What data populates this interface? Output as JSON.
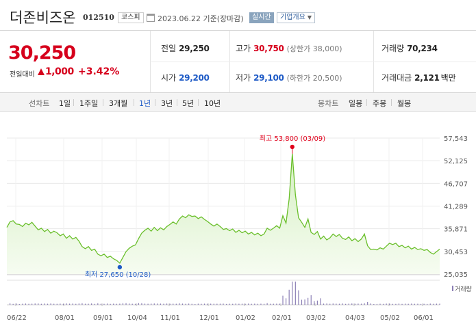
{
  "header": {
    "name": "더존비즈온",
    "code": "012510",
    "market": "코스피",
    "as_of": "2023.06.22 기준(장마감)",
    "realtime_label": "실시간",
    "overview_label": "기업개요",
    "overview_caret": "▼"
  },
  "price": {
    "current": "30,250",
    "diff_label": "전일대비",
    "diff": "1,000",
    "rate": "+3.42%"
  },
  "stats": {
    "prev_label": "전일",
    "prev": "29,250",
    "high_label": "고가",
    "high": "30,750",
    "upper_limit": "(상한가 38,000)",
    "volume_label": "거래량",
    "volume": "70,234",
    "open_label": "시가",
    "open": "29,200",
    "low_label": "저가",
    "low": "29,100",
    "lower_limit": "(하한가 20,500)",
    "amount_label": "거래대금",
    "amount": "2,121",
    "amount_unit": "백만"
  },
  "tabs": {
    "line_label": "선차트",
    "line_items": [
      "1일",
      "1주일",
      "3개월",
      "1년",
      "3년",
      "5년",
      "10년"
    ],
    "active": "1년",
    "candle_label": "봉차트",
    "candle_items": [
      "일봉",
      "주봉",
      "월봉"
    ]
  },
  "colors": {
    "line": "#6abf2b",
    "fill_top": "#d5efc2",
    "fill_bottom": "#f6fcf1",
    "high_marker": "#e0001b",
    "low_marker": "#1f5bc6",
    "volume": "#8b7fb5"
  },
  "chart_data": {
    "type": "area",
    "x_tick_labels": [
      "06/22",
      "08/01",
      "09/01",
      "10/04",
      "11/01",
      "12/01",
      "01/02",
      "02/01",
      "03/02",
      "04/03",
      "05/02",
      "06/01"
    ],
    "y_tick_labels": [
      "57,543",
      "52,125",
      "46,707",
      "41,289",
      "35,871",
      "30,453",
      "25,035"
    ],
    "ylim": [
      25035,
      57543
    ],
    "high_annotation": "최고 53,800 (03/09)",
    "low_annotation": "최저 27,650 (10/28)",
    "high": 53800,
    "low": 27650,
    "volume_label": "거래량",
    "series": [
      {
        "values": [
          36200,
          37500,
          37800,
          37000,
          36900,
          36400,
          37200,
          36800,
          37400,
          36500,
          35600,
          36000,
          35200,
          35700,
          34800,
          35300,
          34900,
          34200,
          34600,
          33600,
          34200,
          33400,
          33800,
          32900,
          31600,
          31100,
          31600,
          30700,
          31000,
          29800,
          29400,
          29800,
          29000,
          29300,
          28700,
          28300,
          27650,
          29000,
          30400,
          31200,
          31700,
          32000,
          33500,
          34800,
          35500,
          36000,
          35300,
          36200,
          35400,
          36100,
          35600,
          36400,
          36900,
          37500,
          37000,
          38200,
          38900,
          38500,
          39200,
          38800,
          38900,
          38300,
          38700,
          38100,
          37600,
          37000,
          36500,
          37000,
          36400,
          35700,
          35900,
          35400,
          35800,
          35000,
          35500,
          34900,
          35300,
          34600,
          35000,
          34400,
          34800,
          34200,
          34600,
          36000,
          35500,
          36000,
          36600,
          36000,
          39000,
          37200,
          43000,
          53800,
          44000,
          38500,
          37400,
          36200,
          38200,
          35000,
          34500,
          35200,
          33400,
          34100,
          33200,
          33700,
          34600,
          34000,
          34500,
          33600,
          33300,
          33900,
          33000,
          33500,
          32800,
          33400,
          34600,
          31800,
          30900,
          31000,
          30800,
          31300,
          31000,
          31700,
          32400,
          32100,
          32400,
          31600,
          31900,
          31300,
          31700,
          31000,
          31400,
          30900,
          31100,
          30700,
          30900,
          30200,
          29800,
          30400,
          31000
        ]
      }
    ]
  }
}
